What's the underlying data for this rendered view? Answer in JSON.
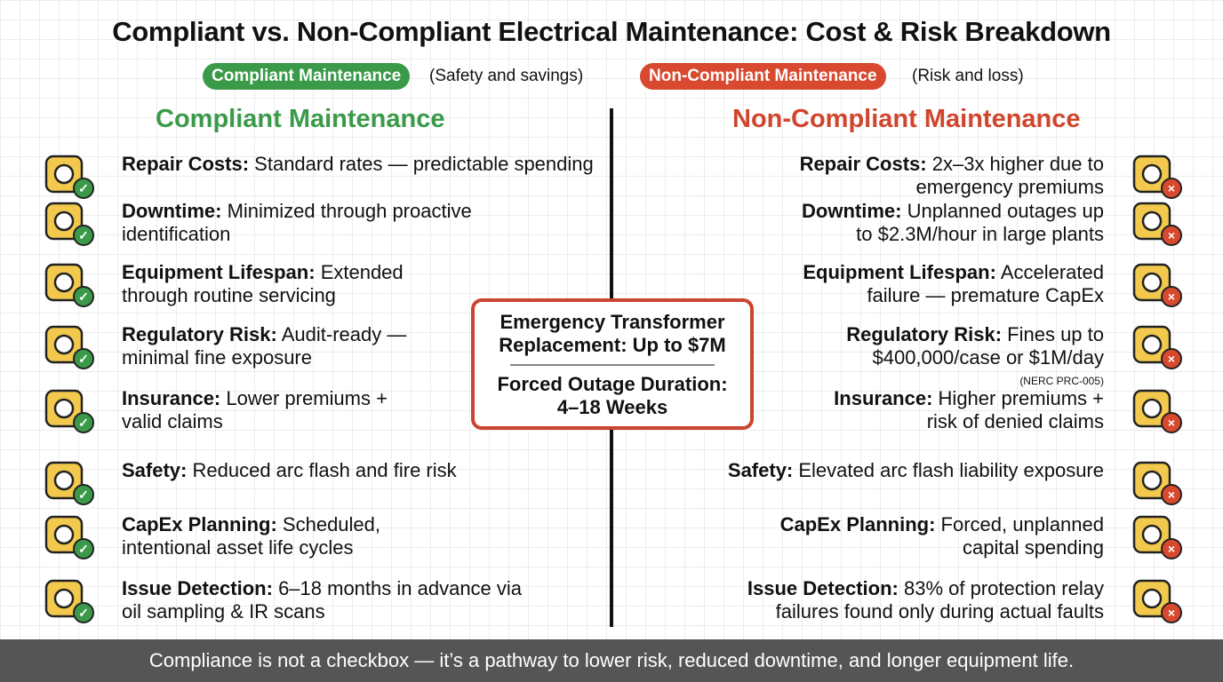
{
  "header": {
    "title": "Compliant vs. Non-Compliant Electrical Maintenance: Cost & Risk Breakdown"
  },
  "legend": [
    {
      "label": "Compliant Maintenance",
      "description": "(Safety and savings)"
    },
    {
      "label": "Non-Compliant Maintenance",
      "description": "(Risk and loss)"
    }
  ],
  "compliant": {
    "title": "Compliant Maintenance",
    "items": [
      {
        "label": "Repair Costs:",
        "text": "Standard rates — predictable spending"
      },
      {
        "label": "Downtime:",
        "text": "Minimized through proactive identification"
      },
      {
        "label": "Equipment Lifespan:",
        "text": "Extended through routine servicing"
      },
      {
        "label": "Regulatory Risk:",
        "text": "Audit-ready — minimal fine exposure"
      },
      {
        "label": "Insurance:",
        "text": "Lower premiums + valid claims"
      },
      {
        "label": "Safety:",
        "text": "Reduced arc flash and fire risk"
      },
      {
        "label": "CapEx Planning:",
        "text": "Scheduled, intentional asset life cycles"
      },
      {
        "label": "Issue Detection:",
        "text": "6–18 months in advance via oil sampling & IR scans"
      }
    ]
  },
  "noncompliant": {
    "title": "Non-Compliant Maintenance",
    "items": [
      {
        "label": "Repair Costs:",
        "text": "2x–3x higher due to emergency premiums"
      },
      {
        "label": "Downtime:",
        "text": "Unplanned outages up to $2.3M/hour in large plants"
      },
      {
        "label": "Equipment Lifespan:",
        "text": "Accelerated failure — premature CapEx"
      },
      {
        "label": "Regulatory Risk:",
        "text": "Fines up to $400,000/case or $1M/day",
        "note": "(NERC PRC-005)"
      },
      {
        "label": "Insurance:",
        "text": "Higher premiums + risk of denied claims"
      },
      {
        "label": "Safety:",
        "text": "Elevated arc flash liability exposure"
      },
      {
        "label": "CapEx Planning:",
        "text": "Forced, unplanned capital spending"
      },
      {
        "label": "Issue Detection:",
        "text": "83% of protection relay failures found only during actual faults"
      }
    ]
  },
  "center_box": {
    "line1": "Emergency Transformer Replacement: Up to $7M",
    "line2": "Forced Outage Duration: 4–18 Weeks"
  },
  "footer": {
    "text": "Compliance is not a checkbox — it’s a pathway to lower risk, reduced downtime, and longer equipment life."
  }
}
